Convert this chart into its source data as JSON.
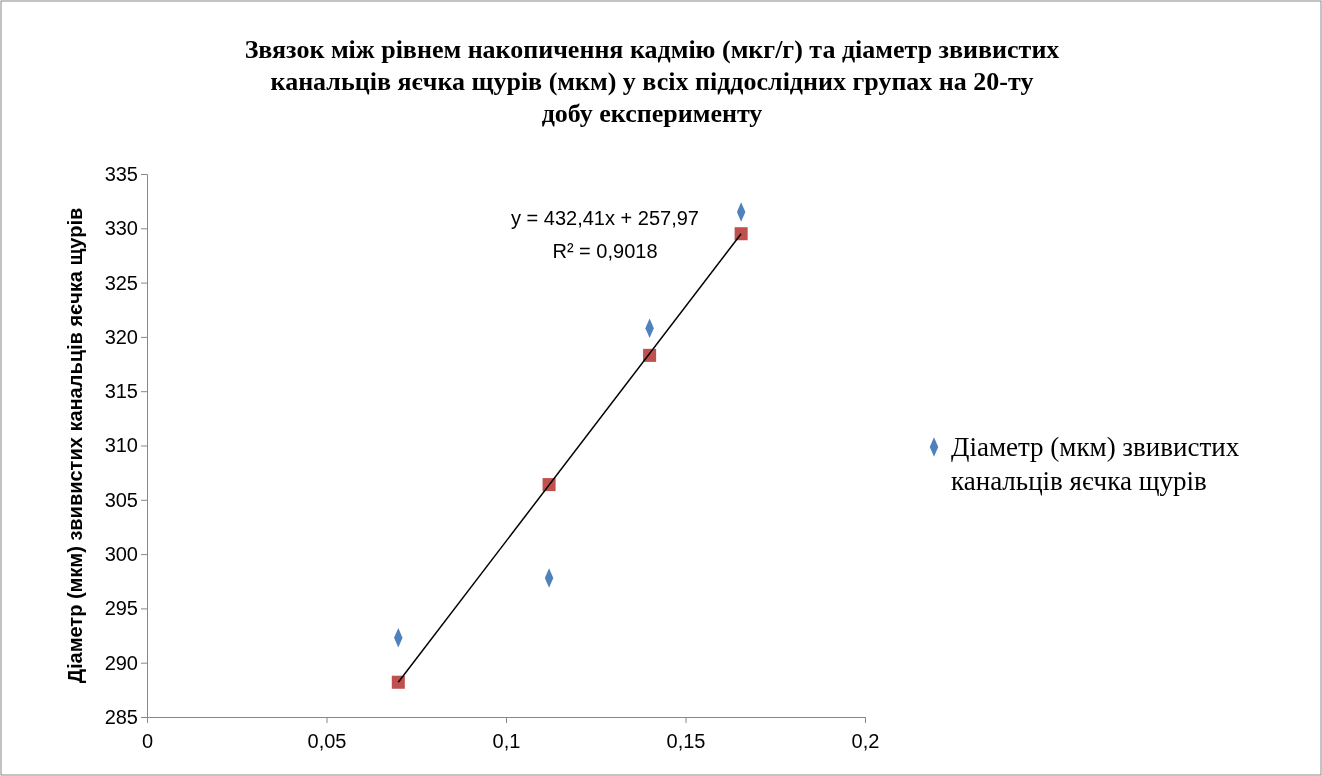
{
  "chart_data": {
    "type": "scatter",
    "title": "Звязок між рівнем накопичення кадмію (мкг/г) та діаметр звивистих канальців яєчка  щурів (мкм)  у всіх  піддослідних групах  на 20-ту добу експерименту",
    "ylabel": "Діаметр (мкм) звивистих канальців яєчка щурів",
    "xlim": [
      0,
      0.2
    ],
    "xticks": [
      0,
      {
        "value": 0.05,
        "label": "0,05"
      },
      {
        "value": 0.1,
        "label": "0,1"
      },
      {
        "value": 0.15,
        "label": "0,15"
      },
      {
        "value": 0.2,
        "label": "0,2"
      }
    ],
    "ylim": [
      285,
      335
    ],
    "yticks": [
      285,
      290,
      295,
      300,
      305,
      310,
      315,
      320,
      325,
      330,
      335
    ],
    "grid": false,
    "legend": "right",
    "series": [
      {
        "name": "Діаметр (мкм) звивистих канальців яєчка щурів",
        "color": "#4f81bd",
        "marker": "diamond",
        "x": [
          0.07,
          0.112,
          0.14,
          0.1655
        ],
        "values": [
          292.3,
          297.8,
          320.8,
          331.5
        ]
      },
      {
        "color": "#c0504d",
        "marker": "square",
        "x": [
          0.07,
          0.112,
          0.14,
          0.1655
        ],
        "values": [
          288.2,
          306.4,
          318.3,
          329.5
        ]
      },
      {
        "type": "line",
        "color": "#000000",
        "marker": "none",
        "x": [
          0.07,
          0.1655
        ],
        "values": [
          288.2,
          329.5
        ]
      }
    ],
    "annotations": [
      "y = 432,41x + 257,97",
      "R² = 0,9018"
    ]
  }
}
